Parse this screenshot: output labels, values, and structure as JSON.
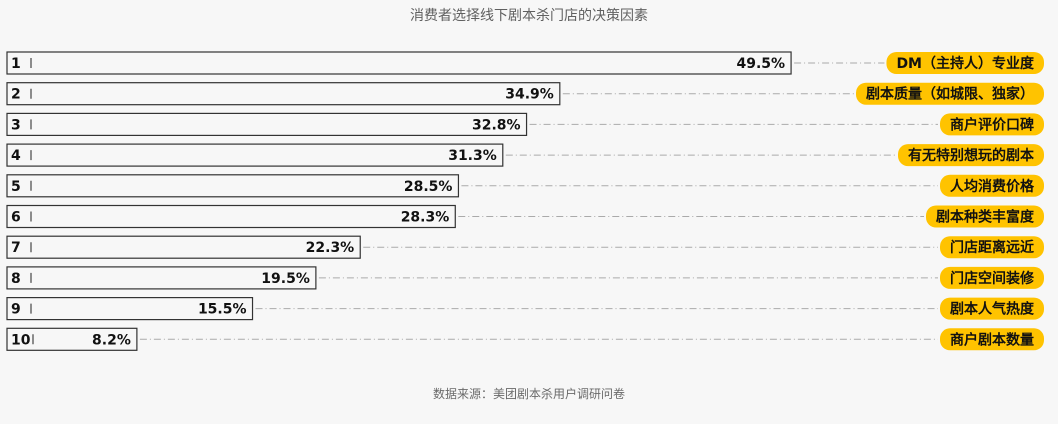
{
  "chart_data": {
    "type": "bar",
    "orientation": "horizontal",
    "title": "消费者选择线下剧本杀门店的决策因素",
    "ranks": [
      "1",
      "2",
      "3",
      "4",
      "5",
      "6",
      "7",
      "8",
      "9",
      "10"
    ],
    "categories": [
      "DM（主持人）专业度",
      "剧本质量（如城限、独家）",
      "商户评价口碑",
      "有无特别想玩的剧本",
      "人均消费价格",
      "剧本种类丰富度",
      "门店距离远近",
      "门店空间装修",
      "剧本人气热度",
      "商户剧本数量"
    ],
    "values": [
      49.5,
      34.9,
      32.8,
      31.3,
      28.5,
      28.3,
      22.3,
      19.5,
      15.5,
      8.2
    ],
    "value_labels": [
      "49.5%",
      "34.9%",
      "32.8%",
      "31.3%",
      "28.5%",
      "28.3%",
      "22.3%",
      "19.5%",
      "15.5%",
      "8.2%"
    ],
    "unit": "%",
    "xlim": [
      0,
      100
    ],
    "grid": false,
    "legend": "none",
    "colors": {
      "bar_fill": "#f7f7f7",
      "bar_stroke": "#333333",
      "label_bg": "#ffc300",
      "label_text": "#111111",
      "leader_line": "#aaaaaa"
    }
  },
  "footer": {
    "source": "数据来源：美团剧本杀用户调研问卷"
  }
}
